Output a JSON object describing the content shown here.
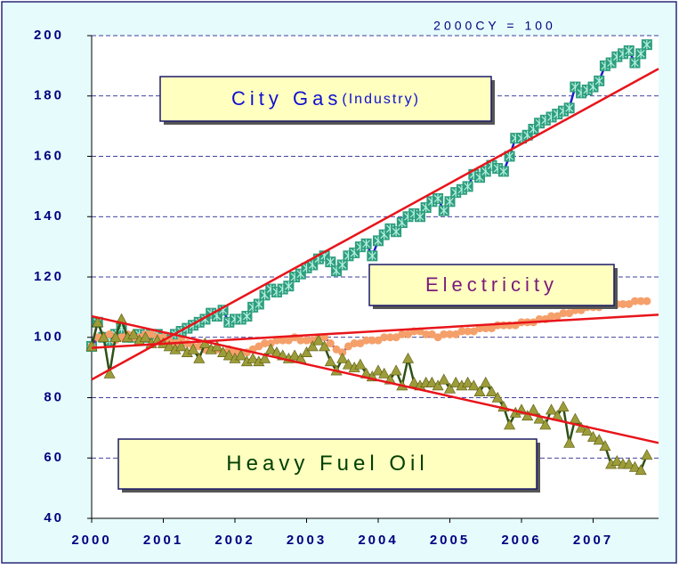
{
  "chart_data": {
    "type": "line",
    "note": "2000CY = 100",
    "categories": [
      "2000",
      null,
      null,
      null,
      null,
      null,
      null,
      null,
      null,
      null,
      null,
      null,
      "2001",
      null,
      null,
      null,
      null,
      null,
      null,
      null,
      null,
      null,
      null,
      null,
      "2002",
      null,
      null,
      null,
      null,
      null,
      null,
      null,
      null,
      null,
      null,
      null,
      "2003",
      null,
      null,
      null,
      null,
      null,
      null,
      null,
      null,
      null,
      null,
      null,
      "2004",
      null,
      null,
      null,
      null,
      null,
      null,
      null,
      null,
      null,
      null,
      null,
      "2005",
      null,
      null,
      null,
      null,
      null,
      null,
      null,
      null,
      null,
      null,
      null,
      "2006",
      null,
      null,
      null,
      null,
      null,
      null,
      null,
      null,
      null,
      null,
      null,
      "2007",
      null,
      null,
      null,
      null,
      null,
      null,
      null,
      null,
      null
    ],
    "ylim": [
      40,
      200
    ],
    "yticks": [
      40,
      60,
      80,
      100,
      120,
      140,
      160,
      180,
      200
    ],
    "grid": true,
    "series": [
      {
        "name": "City Gas",
        "name_suffix": "(Industry)",
        "color": "#1c1cc8",
        "marker_color": "#2e9e7e",
        "marker": "square",
        "values": [
          97,
          105,
          100,
          99,
          101,
          103,
          100,
          100,
          101,
          100,
          101,
          101,
          100,
          99,
          101,
          102,
          103,
          104,
          105,
          106,
          108,
          107,
          109,
          105,
          106,
          106,
          107,
          110,
          111,
          114,
          116,
          115,
          116,
          117,
          120,
          121,
          123,
          124,
          126,
          127,
          125,
          122,
          124,
          127,
          128,
          130,
          131,
          127,
          132,
          134,
          136,
          135,
          138,
          140,
          141,
          140,
          143,
          145,
          146,
          142,
          145,
          148,
          149,
          150,
          154,
          153,
          155,
          157,
          156,
          155,
          160,
          166,
          166,
          167,
          169,
          171,
          172,
          173,
          174,
          175,
          176,
          183,
          181,
          182,
          183,
          185,
          190,
          191,
          193,
          194,
          195,
          191,
          194,
          197
        ],
        "trend": [
          86,
          189
        ]
      },
      {
        "name": "Electricity",
        "color": "#6a2d9e",
        "marker_color": "#f5a06a",
        "marker": "circle",
        "values": [
          97,
          100,
          100,
          101,
          99,
          100,
          101,
          100,
          100,
          101,
          101,
          100,
          100,
          99,
          98,
          99,
          98,
          97,
          97,
          96,
          96,
          96,
          95,
          96,
          95,
          95,
          95,
          96,
          97,
          98,
          98,
          99,
          99,
          99,
          100,
          99,
          99,
          99,
          100,
          100,
          98,
          96,
          95,
          97,
          98,
          98,
          99,
          99,
          99,
          100,
          100,
          100,
          101,
          101,
          102,
          102,
          101,
          101,
          100,
          101,
          101,
          101,
          102,
          102,
          102,
          103,
          103,
          103,
          104,
          104,
          104,
          104,
          105,
          105,
          105,
          106,
          106,
          107,
          107,
          108,
          108,
          109,
          109,
          110,
          110,
          110,
          111,
          111,
          111,
          111,
          111,
          112,
          112,
          112
        ],
        "trend": [
          96.5,
          107.5
        ]
      },
      {
        "name": "Heavy Fuel Oil",
        "color": "#2d5016",
        "marker_color": "#9c9c3a",
        "marker": "triangle",
        "values": [
          97,
          105,
          100,
          88,
          100,
          106,
          100,
          101,
          99,
          100,
          98,
          99,
          98,
          97,
          96,
          97,
          95,
          96,
          93,
          98,
          96,
          97,
          95,
          94,
          93,
          94,
          92,
          93,
          92,
          93,
          96,
          95,
          94,
          93,
          94,
          93,
          95,
          97,
          99,
          97,
          92,
          89,
          93,
          91,
          90,
          91,
          88,
          87,
          89,
          88,
          86,
          89,
          84,
          93,
          85,
          84,
          85,
          85,
          84,
          86,
          83,
          85,
          84,
          85,
          84,
          82,
          85,
          82,
          80,
          77,
          71,
          75,
          76,
          74,
          76,
          73,
          71,
          76,
          74,
          77,
          65,
          73,
          70,
          69,
          67,
          66,
          64,
          58,
          59,
          58,
          58,
          57,
          56,
          61
        ],
        "trend": [
          107,
          65
        ]
      }
    ],
    "trend_color": "#e8141a"
  }
}
